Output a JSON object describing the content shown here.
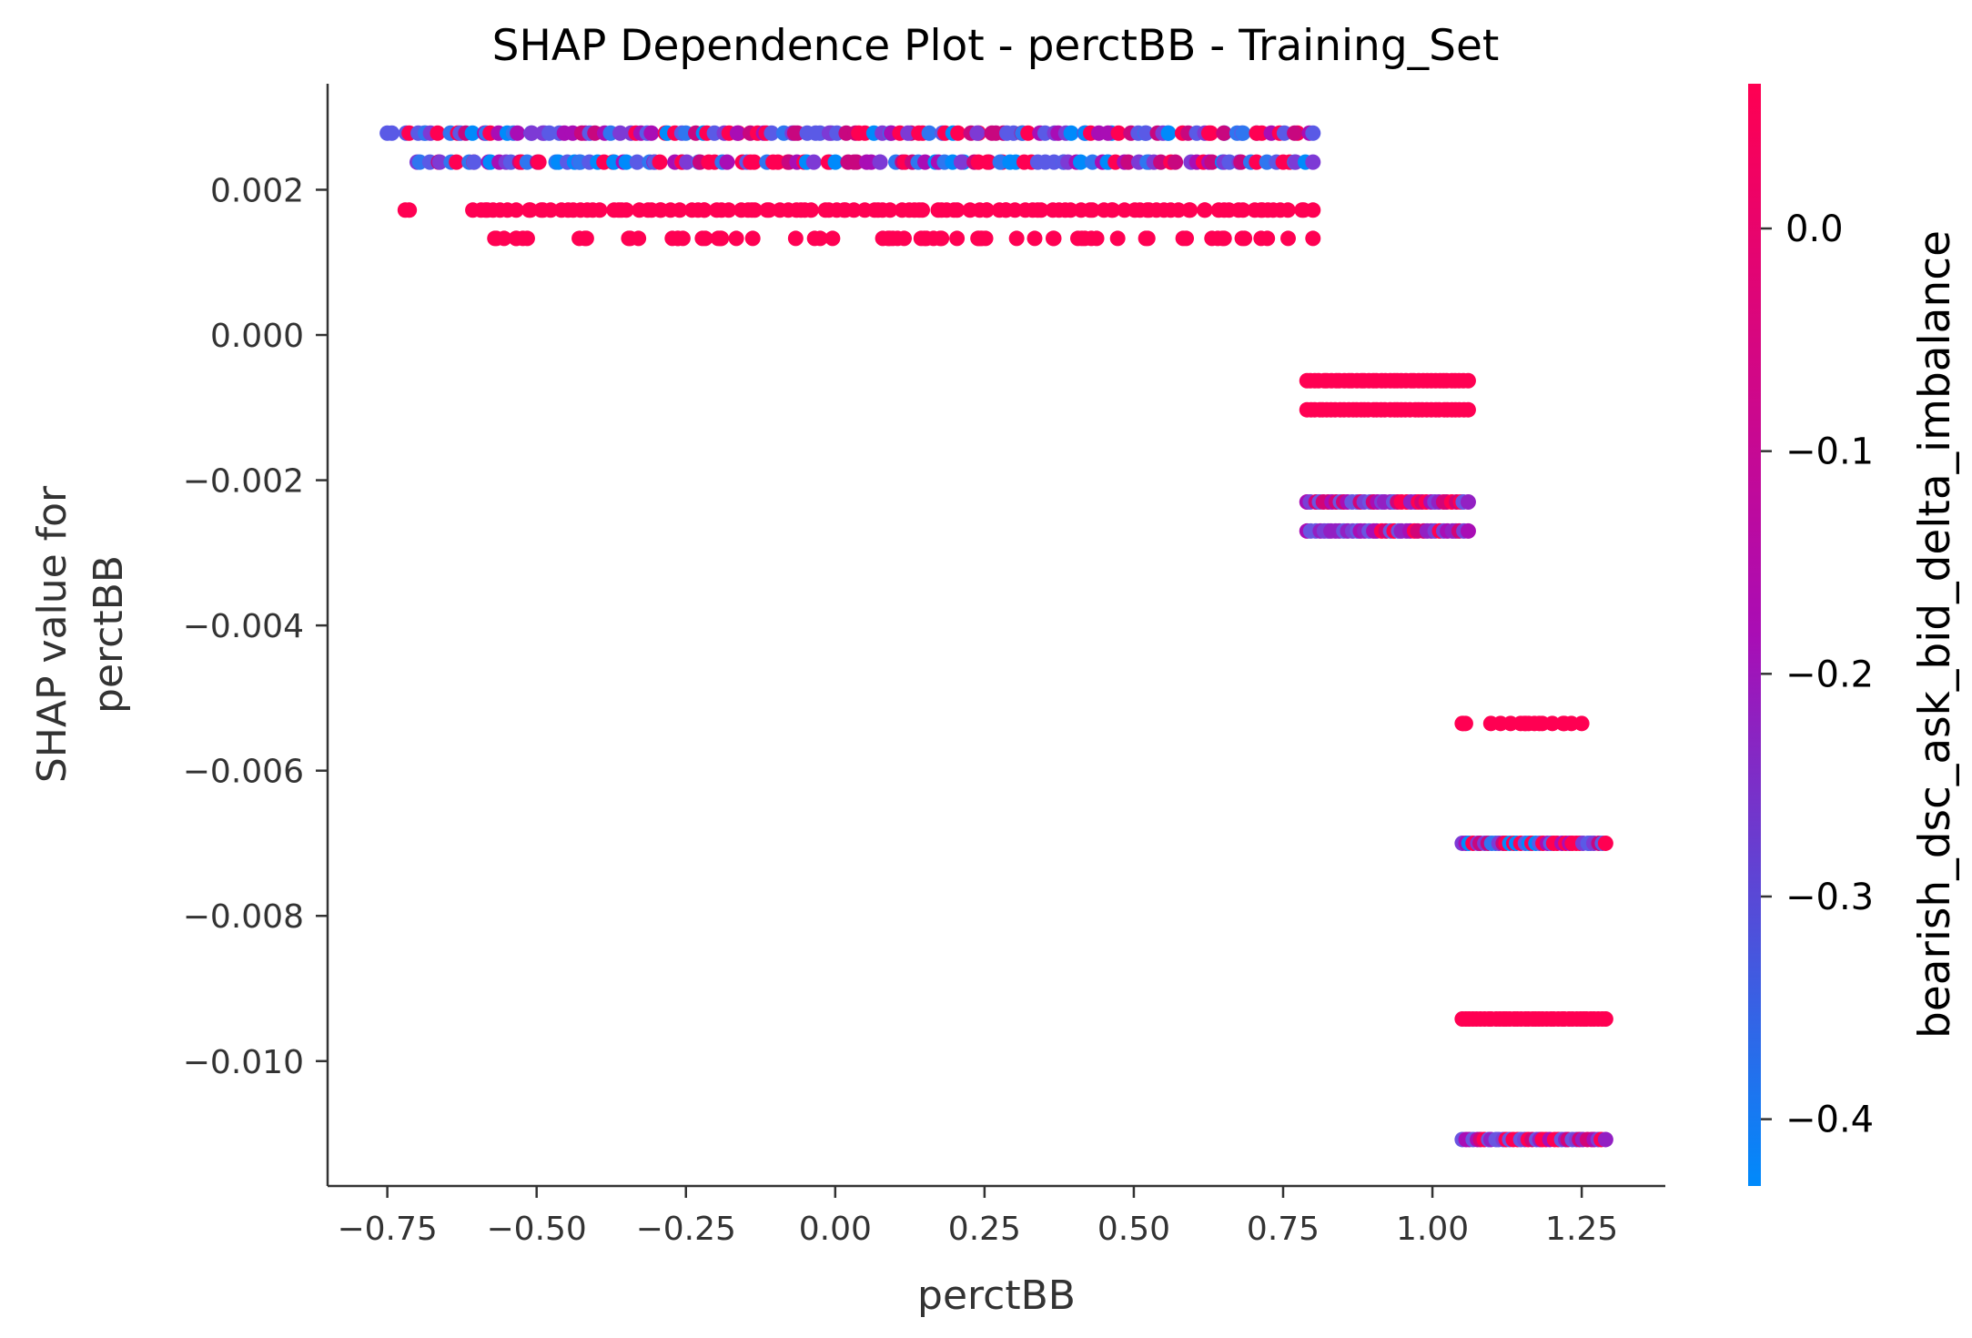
{
  "chart_data": {
    "type": "scatter",
    "title": "SHAP Dependence Plot - perctBB - Training_Set",
    "xlabel": "perctBB",
    "ylabel_lines": [
      "SHAP value for",
      "perctBB"
    ],
    "xlim": [
      -0.85,
      1.39
    ],
    "ylim": [
      -0.01172,
      0.00346
    ],
    "x_ticks": [
      -0.75,
      -0.5,
      -0.25,
      0.0,
      0.25,
      0.5,
      0.75,
      1.0,
      1.25
    ],
    "x_tick_labels": [
      "−0.75",
      "−0.50",
      "−0.25",
      "0.00",
      "0.25",
      "0.50",
      "0.75",
      "1.00",
      "1.25"
    ],
    "y_ticks": [
      0.002,
      0.0,
      -0.002,
      -0.004,
      -0.006,
      -0.008,
      -0.01
    ],
    "y_tick_labels": [
      "0.002",
      "0.000",
      "−0.002",
      "−0.004",
      "−0.006",
      "−0.008",
      "−0.010"
    ],
    "colorbar": {
      "label": "bearish_dsc_ask_bid_delta_imbalance",
      "range": [
        -0.43,
        0.065
      ],
      "ticks": [
        0.0,
        -0.1,
        -0.2,
        -0.3,
        -0.4
      ],
      "tick_labels": [
        "0.0",
        "−0.1",
        "−0.2",
        "−0.3",
        "−0.4"
      ],
      "low_color": "#008afb",
      "mid_color": "#a90db5",
      "high_color": "#ff0052"
    },
    "bands": [
      {
        "y": 0.00278,
        "x_start": -0.75,
        "x_end": 0.8,
        "color_mode": "mixed",
        "count": 140
      },
      {
        "y": 0.00238,
        "x_start": -0.7,
        "x_end": 0.8,
        "color_mode": "mixed",
        "count": 135
      },
      {
        "y": 0.00172,
        "x_start": -0.72,
        "x_end": 0.8,
        "color_mode": "high",
        "gaps": [
          [
            -0.69,
            -0.63
          ]
        ],
        "count": 130
      },
      {
        "y": 0.00133,
        "x_start": -0.57,
        "x_end": 0.8,
        "color_mode": "high",
        "sparse": true,
        "count": 70
      },
      {
        "y": -0.00063,
        "x_start": 0.79,
        "x_end": 1.06,
        "color_mode": "high",
        "count": 40
      },
      {
        "y": -0.00103,
        "x_start": 0.79,
        "x_end": 1.06,
        "color_mode": "high",
        "count": 40
      },
      {
        "y": -0.0023,
        "x_start": 0.79,
        "x_end": 1.06,
        "color_mode": "mixed_mid",
        "count": 40
      },
      {
        "y": -0.0027,
        "x_start": 0.79,
        "x_end": 1.06,
        "color_mode": "mixed_mid",
        "count": 40
      },
      {
        "y": -0.00535,
        "x_start": 1.05,
        "x_end": 1.25,
        "color_mode": "high",
        "sparse": true,
        "count": 18
      },
      {
        "y": -0.007,
        "x_start": 1.05,
        "x_end": 1.29,
        "color_mode": "mixed",
        "count": 40
      },
      {
        "y": -0.00942,
        "x_start": 1.05,
        "x_end": 1.29,
        "color_mode": "high",
        "count": 40
      },
      {
        "y": -0.01108,
        "x_start": 1.05,
        "x_end": 1.29,
        "color_mode": "mixed_mid",
        "count": 40
      }
    ]
  }
}
